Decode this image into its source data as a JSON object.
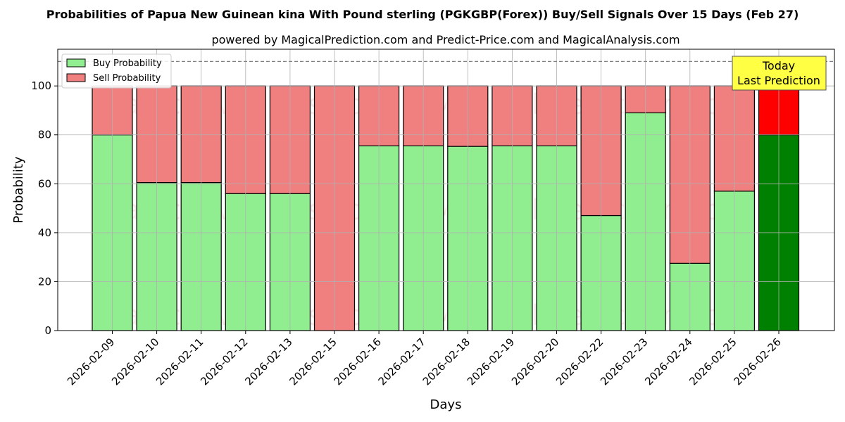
{
  "chart_data": {
    "type": "bar",
    "title": "Probabilities of Papua New Guinean kina With Pound sterling (PGKGBP(Forex)) Buy/Sell Signals Over 15 Days (Feb 27)",
    "subtitle": "powered by MagicalPrediction.com and Predict-Price.com and MagicalAnalysis.com",
    "xlabel": "Days",
    "ylabel": "Probability",
    "ylim": [
      0,
      115
    ],
    "yticks": [
      0,
      20,
      40,
      60,
      80,
      100
    ],
    "threshold_line": 110,
    "grid": true,
    "legend_position": "top-left",
    "stacked": true,
    "categories": [
      "2026-02-09",
      "2026-02-10",
      "2026-02-11",
      "2026-02-12",
      "2026-02-13",
      "2026-02-15",
      "2026-02-16",
      "2026-02-17",
      "2026-02-18",
      "2026-02-19",
      "2026-02-20",
      "2026-02-22",
      "2026-02-23",
      "2026-02-24",
      "2026-02-25",
      "2026-02-26"
    ],
    "series": [
      {
        "name": "Buy Probability",
        "color": "#90EE90",
        "highlight_color": "#008000",
        "values": [
          80,
          60.5,
          60.5,
          56,
          56,
          0,
          75.5,
          75.5,
          75.3,
          75.5,
          75.5,
          47,
          89,
          27.5,
          57,
          80
        ]
      },
      {
        "name": "Sell Probability",
        "color": "#F08080",
        "highlight_color": "#FF0000",
        "values": [
          20,
          39.5,
          39.5,
          44,
          44,
          100,
          24.5,
          24.5,
          24.7,
          24.5,
          24.5,
          53,
          11,
          72.5,
          43,
          20
        ]
      }
    ],
    "annotation": {
      "line1": "Today",
      "line2": "Last Prediction",
      "color": "#FFFF44"
    },
    "watermarks": [
      "MagicalAnalysis.com",
      "MagicalPrediction.com"
    ]
  }
}
